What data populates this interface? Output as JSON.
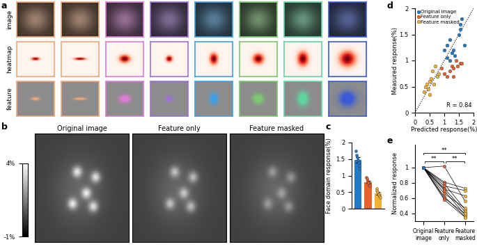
{
  "panel_a": {
    "panel": "a",
    "rows": [
      "image",
      "heatmap",
      "feature"
    ],
    "colors": [
      "#f2a877",
      "#f2a877",
      "#e07ad8",
      "#a070d8",
      "#3fa0e6",
      "#7bc96f",
      "#5fd6a0",
      "#3a5ad8"
    ]
  },
  "panel_b": {
    "panel": "b",
    "titles": [
      "Original image",
      "Feature only",
      "Feature masked"
    ],
    "colorbar": {
      "range": [
        -1,
        4
      ],
      "ticks": [
        {
          "value": 4,
          "label": "4%"
        },
        {
          "value": -1,
          "label": "-1%"
        }
      ]
    }
  },
  "chart_data": [
    {
      "panel": "c",
      "type": "bar",
      "categories": [
        null,
        null,
        null
      ],
      "values": [
        1.47,
        0.81,
        0.46
      ],
      "errors": [
        0.09,
        0.04,
        0.04
      ],
      "points": [
        [
          1.75,
          1.62,
          1.55,
          1.48,
          1.4,
          1.3,
          1.22
        ],
        [
          0.95,
          0.9,
          0.85,
          0.8,
          0.78,
          0.72,
          0.7
        ],
        [
          0.62,
          0.55,
          0.5,
          0.45,
          0.42,
          0.38,
          0.33
        ]
      ],
      "colors": [
        "#1f78c8",
        "#e8612c",
        "#f2b134"
      ],
      "y_label": "Face domain response(%)",
      "ylim": [
        0,
        2
      ],
      "yticks": [
        0,
        0.5,
        1,
        1.5,
        2
      ]
    },
    {
      "panel": "d",
      "type": "scatter",
      "x_label": "Predicted response(%)",
      "y_label": "Measured response(%)",
      "xlim": [
        0,
        2
      ],
      "ylim": [
        0,
        2
      ],
      "xticks": [
        0,
        0.5,
        1,
        1.5,
        2
      ],
      "yticks": [
        0,
        0.5,
        1,
        1.5,
        2
      ],
      "legend": "upper left",
      "annotation": "R = 0.84",
      "series": [
        {
          "name": "Original image",
          "color": "#1f78c8",
          "x": [
            1.0,
            1.1,
            1.2,
            1.25,
            1.3,
            1.35,
            1.55,
            1.5,
            1.55,
            1.6,
            1.7,
            1.2,
            1.1
          ],
          "y": [
            1.2,
            1.3,
            1.4,
            1.15,
            1.2,
            1.1,
            1.7,
            1.5,
            1.6,
            1.8,
            1.3,
            1.0,
            1.05
          ]
        },
        {
          "name": "Feature only",
          "color": "#e8612c",
          "x": [
            0.9,
            1.0,
            1.1,
            1.2,
            1.25,
            1.3,
            1.4,
            1.45,
            1.55,
            1.3,
            1.6
          ],
          "y": [
            0.85,
            0.75,
            0.7,
            0.8,
            0.9,
            0.85,
            1.0,
            0.9,
            0.95,
            0.7,
            0.95
          ]
        },
        {
          "name": "Feature masked",
          "color": "#f2b134",
          "x": [
            0.3,
            0.35,
            0.4,
            0.45,
            0.5,
            0.55,
            0.6,
            0.7,
            0.75,
            0.8,
            0.5,
            0.65
          ],
          "y": [
            0.4,
            0.5,
            0.55,
            0.45,
            0.6,
            0.65,
            0.8,
            0.9,
            0.7,
            0.75,
            0.35,
            0.55
          ]
        }
      ]
    },
    {
      "panel": "e",
      "type": "line",
      "categories": [
        "Original image",
        "Feature only",
        "Feature masked"
      ],
      "colors": [
        "#1f78c8",
        "#e8612c",
        "#f2b134"
      ],
      "y_label": "Normalized response",
      "ylim": [
        0.3,
        1.3
      ],
      "yticks": [
        0.4,
        0.6,
        0.8,
        1
      ],
      "lines": [
        [
          1,
          1.02,
          0.56
        ],
        [
          1,
          0.81,
          0.73
        ],
        [
          1,
          0.79,
          0.45
        ],
        [
          1,
          0.76,
          0.7
        ],
        [
          1,
          0.73,
          0.42
        ],
        [
          1,
          0.72,
          0.63
        ],
        [
          1,
          0.7,
          0.38
        ],
        [
          1,
          0.66,
          0.47
        ],
        [
          1,
          0.62,
          0.36
        ],
        [
          1,
          0.6,
          0.4
        ],
        [
          1,
          0.58,
          0.35
        ]
      ],
      "significance": [
        {
          "pair": [
            0,
            1
          ],
          "label": "**"
        },
        {
          "pair": [
            0,
            2
          ],
          "label": "**"
        },
        {
          "pair": [
            1,
            2
          ],
          "label": "**"
        }
      ]
    }
  ]
}
